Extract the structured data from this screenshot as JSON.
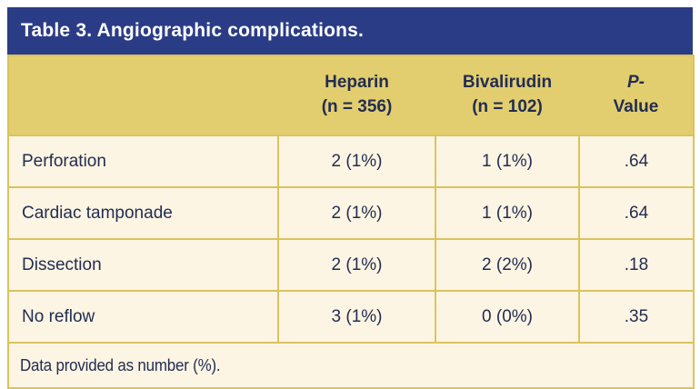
{
  "table": {
    "title": "Table 3. Angiographic complications.",
    "columns": [
      {
        "line1": "Heparin",
        "line2": "(n = 356)"
      },
      {
        "line1": "Bivalirudin",
        "line2": "(n = 102)"
      },
      {
        "line1": "P-",
        "line2": "Value"
      }
    ],
    "rows": [
      {
        "label": "Perforation",
        "heparin": "2 (1%)",
        "bivalirudin": "1 (1%)",
        "p_value": ".64"
      },
      {
        "label": "Cardiac tamponade",
        "heparin": "2 (1%)",
        "bivalirudin": "1 (1%)",
        "p_value": ".64"
      },
      {
        "label": "Dissection",
        "heparin": "2 (1%)",
        "bivalirudin": "2 (2%)",
        "p_value": ".18"
      },
      {
        "label": "No reflow",
        "heparin": "3 (1%)",
        "bivalirudin": "0 (0%)",
        "p_value": ".35"
      }
    ],
    "footnote": "Data provided as number (%)."
  },
  "colors": {
    "title_bar_navy": "#2b3c86",
    "header_row_gold": "#e2ce6e",
    "border_gold": "#d9c35f",
    "body_cream": "#fdf5e3",
    "text_navy": "#232d52",
    "title_text_white": "#ffffff"
  }
}
